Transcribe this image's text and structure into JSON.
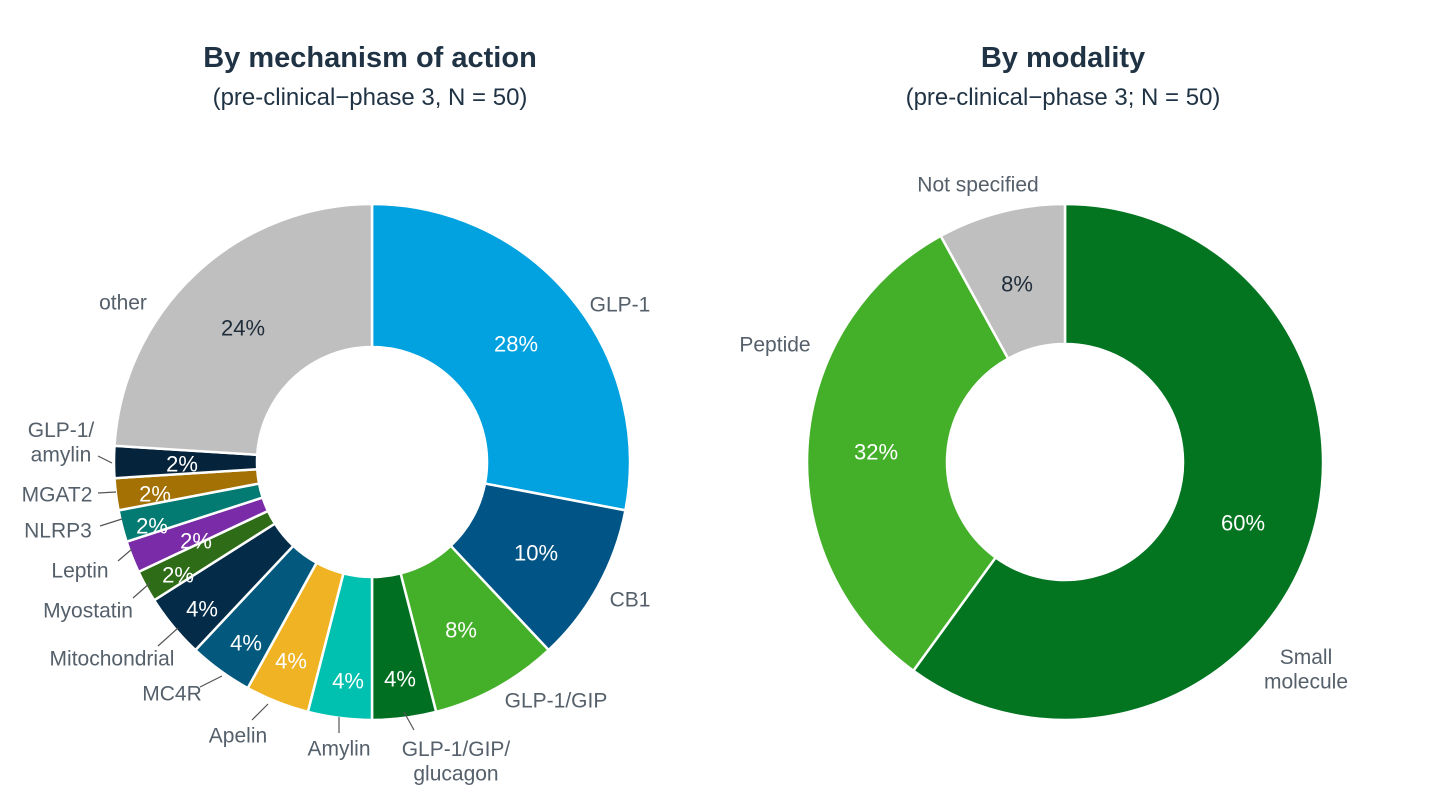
{
  "chart_data": [
    {
      "type": "donut",
      "title": "By mechanism of action",
      "subtitle": "(pre-clinical−phase 3, N = 50)",
      "slices": [
        {
          "label": "GLP-1",
          "value": 28,
          "value_label": "28%",
          "color": "#02a1e0",
          "value_color": "#ffffff"
        },
        {
          "label": "CB1",
          "value": 10,
          "value_label": "10%",
          "color": "#015486",
          "value_color": "#ffffff"
        },
        {
          "label": "GLP-1/GIP",
          "value": 8,
          "value_label": "8%",
          "color": "#44b02a",
          "value_color": "#ffffff"
        },
        {
          "label": "GLP-1/GIP/\nglucagon",
          "value": 4,
          "value_label": "4%",
          "color": "#016f21",
          "value_color": "#ffffff"
        },
        {
          "label": "Amylin",
          "value": 4,
          "value_label": "4%",
          "color": "#00c1b0",
          "value_color": "#ffffff"
        },
        {
          "label": "Apelin",
          "value": 4,
          "value_label": "4%",
          "color": "#f0b323",
          "value_color": "#ffffff"
        },
        {
          "label": "MC4R",
          "value": 4,
          "value_label": "4%",
          "color": "#03597d",
          "value_color": "#ffffff"
        },
        {
          "label": "Mitochondrial",
          "value": 4,
          "value_label": "4%",
          "color": "#042c48",
          "value_color": "#ffffff"
        },
        {
          "label": "Myostatin",
          "value": 2,
          "value_label": "2%",
          "color": "#2e6c17",
          "value_color": "#ffffff"
        },
        {
          "label": "Leptin",
          "value": 2,
          "value_label": "2%",
          "color": "#7a2ba8",
          "value_color": "#ffffff"
        },
        {
          "label": "NLRP3",
          "value": 2,
          "value_label": "2%",
          "color": "#047b72",
          "value_color": "#ffffff"
        },
        {
          "label": "MGAT2",
          "value": 2,
          "value_label": "2%",
          "color": "#a37104",
          "value_color": "#ffffff"
        },
        {
          "label": "GLP-1/\namylin",
          "value": 2,
          "value_label": "2%",
          "color": "#05233b",
          "value_color": "#ffffff"
        },
        {
          "label": "other",
          "value": 24,
          "value_label": "24%",
          "color": "#bfbfbf",
          "value_color": "#1f2d3a"
        }
      ]
    },
    {
      "type": "donut",
      "title": "By modality",
      "subtitle": "(pre-clinical−phase 3; N = 50)",
      "slices": [
        {
          "label": "Small\nmolecule",
          "value": 60,
          "value_label": "60%",
          "color": "#037521",
          "value_color": "#ffffff"
        },
        {
          "label": "Peptide",
          "value": 32,
          "value_label": "32%",
          "color": "#44b02a",
          "value_color": "#ffffff"
        },
        {
          "label": "Not specified",
          "value": 8,
          "value_label": "8%",
          "color": "#bfbfbf",
          "value_color": "#1f2d3a"
        }
      ]
    }
  ],
  "label_color": "#55606b",
  "leader_color": "#555555"
}
